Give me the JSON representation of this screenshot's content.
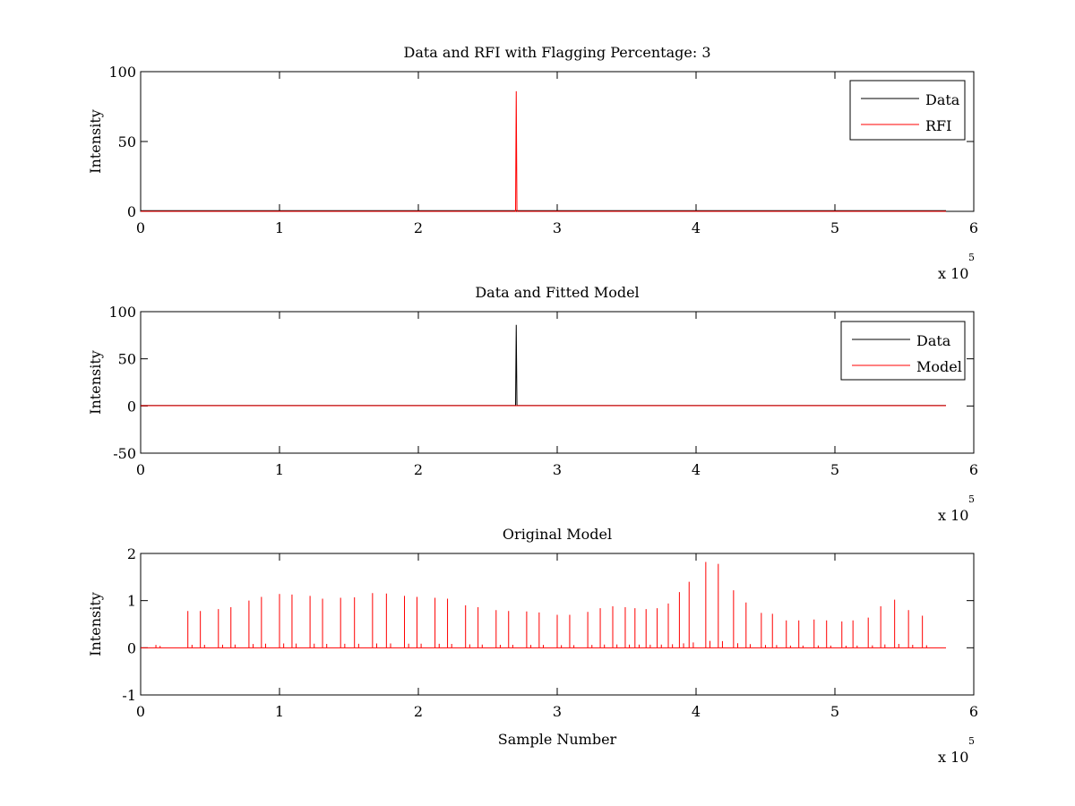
{
  "chart_data": [
    {
      "type": "line",
      "title": "Data and RFI with Flagging Percentage: 3",
      "xlabel": "",
      "ylabel": "Intensity",
      "xlim": [
        0,
        600000
      ],
      "ylim": [
        0,
        100
      ],
      "x_ticks": [
        "0",
        "1",
        "2",
        "3",
        "4",
        "5",
        "6"
      ],
      "y_ticks": [
        "0",
        "50",
        "100"
      ],
      "x_exponent": "x 10",
      "x_exponent_power": "5",
      "legend": {
        "placement": "top-right",
        "entries": [
          "Data",
          "RFI"
        ]
      },
      "series": [
        {
          "name": "Data",
          "color": "#000000",
          "x": [
            0,
            580000
          ],
          "y": [
            0.5,
            0.5
          ]
        },
        {
          "name": "RFI",
          "color": "#ff0000",
          "x": [
            0,
            270000,
            270500,
            271000,
            580000
          ],
          "y": [
            0,
            0,
            86,
            0,
            0
          ]
        }
      ]
    },
    {
      "type": "line",
      "title": "Data and Fitted Model",
      "xlabel": "",
      "ylabel": "Intensity",
      "xlim": [
        0,
        600000
      ],
      "ylim": [
        -50,
        100
      ],
      "x_ticks": [
        "0",
        "1",
        "2",
        "3",
        "4",
        "5",
        "6"
      ],
      "y_ticks": [
        "-50",
        "0",
        "50",
        "100"
      ],
      "x_exponent": "x 10",
      "x_exponent_power": "5",
      "legend": {
        "placement": "top-right",
        "entries": [
          "Data",
          "Model"
        ]
      },
      "series": [
        {
          "name": "Data",
          "color": "#000000",
          "x": [
            0,
            270000,
            270500,
            271000,
            580000
          ],
          "y": [
            0.5,
            0.5,
            86,
            0.5,
            0.5
          ]
        },
        {
          "name": "Model",
          "color": "#ff0000",
          "x": [
            0,
            580000
          ],
          "y": [
            0.3,
            0.3
          ]
        }
      ]
    },
    {
      "type": "line",
      "title": "Original Model",
      "xlabel": "Sample Number",
      "ylabel": "Intensity",
      "xlim": [
        0,
        600000
      ],
      "ylim": [
        -1,
        2
      ],
      "x_ticks": [
        "0",
        "1",
        "2",
        "3",
        "4",
        "5",
        "6"
      ],
      "y_ticks": [
        "-1",
        "0",
        "1",
        "2"
      ],
      "x_exponent": "x 10",
      "x_exponent_power": "5",
      "series": [
        {
          "name": "",
          "color": "#ff0000",
          "peaks_x": [
            11000,
            34000,
            43000,
            56000,
            65000,
            78000,
            87000,
            100000,
            109000,
            122000,
            131000,
            144000,
            154000,
            167000,
            177000,
            190000,
            199000,
            212000,
            221000,
            234000,
            243000,
            256000,
            265000,
            278000,
            287000,
            300000,
            309000,
            322000,
            331000,
            340000,
            349000,
            356000,
            364000,
            372000,
            380000,
            388000,
            395000,
            407000,
            416000,
            427000,
            436000,
            447000,
            455000,
            465000,
            474000,
            485000,
            494000,
            505000,
            513000,
            524000,
            533000,
            543000,
            553000,
            563000
          ],
          "peaks_y": [
            0.06,
            0.78,
            0.78,
            0.82,
            0.86,
            1.0,
            1.08,
            1.14,
            1.13,
            1.1,
            1.04,
            1.06,
            1.07,
            1.16,
            1.15,
            1.1,
            1.08,
            1.06,
            1.04,
            0.9,
            0.86,
            0.8,
            0.78,
            0.77,
            0.75,
            0.7,
            0.7,
            0.76,
            0.84,
            0.88,
            0.86,
            0.84,
            0.82,
            0.84,
            0.94,
            1.18,
            1.4,
            1.82,
            1.78,
            1.22,
            0.96,
            0.74,
            0.72,
            0.58,
            0.58,
            0.6,
            0.58,
            0.56,
            0.58,
            0.64,
            0.88,
            1.02,
            0.8,
            0.68
          ]
        }
      ]
    }
  ]
}
